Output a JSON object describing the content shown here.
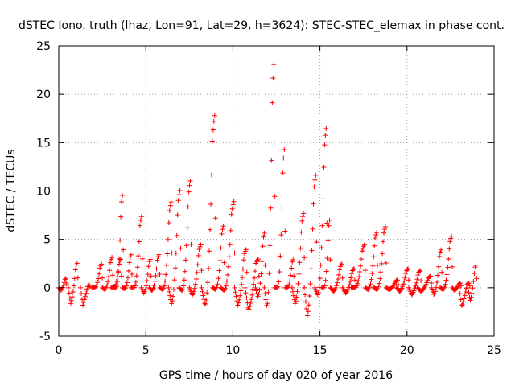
{
  "chart_data": {
    "type": "scatter",
    "title": "dSTEC Iono. truth (lhaz, Lon=91, Lat=29, h=3624): STEC-STEC_elemax in phase cont.",
    "xlabel": "GPS time / hours of day 020 of year 2016",
    "ylabel": "dSTEC  / TECUs",
    "xlim": [
      0,
      25
    ],
    "ylim": [
      -5,
      25
    ],
    "xticks": [
      0,
      5,
      10,
      15,
      20,
      25
    ],
    "yticks": [
      -5,
      0,
      5,
      10,
      15,
      20,
      25
    ],
    "grid": true,
    "marker": "plus",
    "color": "#ff0000",
    "arcs": [
      {
        "start": 0.0,
        "end": 0.45,
        "peak": 1.0,
        "low": -0.3
      },
      {
        "start": 0.55,
        "end": 1.1,
        "peak": 2.6,
        "low": -1.8
      },
      {
        "start": 1.25,
        "end": 1.8,
        "peak": 0.3,
        "low": -2.0
      },
      {
        "start": 1.9,
        "end": 2.5,
        "peak": 2.5,
        "low": 0.0
      },
      {
        "start": 2.5,
        "end": 3.1,
        "peak": 3.2,
        "low": -0.2
      },
      {
        "start": 3.0,
        "end": 3.6,
        "peak": 3.0,
        "low": 0.0
      },
      {
        "start": 3.15,
        "end": 3.7,
        "peak": 9.8,
        "low": 0.0
      },
      {
        "start": 3.65,
        "end": 4.2,
        "peak": 3.5,
        "low": -0.1
      },
      {
        "start": 4.15,
        "end": 4.8,
        "peak": 7.5,
        "low": 0.0
      },
      {
        "start": 4.75,
        "end": 5.3,
        "peak": 3.0,
        "low": -0.6
      },
      {
        "start": 5.2,
        "end": 5.8,
        "peak": 3.5,
        "low": -0.3
      },
      {
        "start": 5.8,
        "end": 6.5,
        "peak": 9.0,
        "low": -0.2
      },
      {
        "start": 6.3,
        "end": 7.0,
        "peak": 10.2,
        "low": -1.8
      },
      {
        "start": 6.9,
        "end": 7.6,
        "peak": 11.2,
        "low": -0.3
      },
      {
        "start": 7.5,
        "end": 8.2,
        "peak": 4.5,
        "low": -0.8
      },
      {
        "start": 8.2,
        "end": 9.0,
        "peak": 18.0,
        "low": -2.0
      },
      {
        "start": 8.85,
        "end": 9.5,
        "peak": 6.5,
        "low": -0.2
      },
      {
        "start": 9.3,
        "end": 10.1,
        "peak": 9.0,
        "low": -0.3
      },
      {
        "start": 10.1,
        "end": 10.8,
        "peak": 4.0,
        "low": -2.0
      },
      {
        "start": 10.7,
        "end": 11.5,
        "peak": 3.0,
        "low": -2.6
      },
      {
        "start": 11.3,
        "end": 11.85,
        "peak": 5.8,
        "low": -1.0
      },
      {
        "start": 11.8,
        "end": 12.4,
        "peak": 23.6,
        "low": -2.2
      },
      {
        "start": 12.4,
        "end": 13.0,
        "peak": 14.6,
        "low": 0.0
      },
      {
        "start": 13.0,
        "end": 13.5,
        "peak": 3.0,
        "low": 0.0
      },
      {
        "start": 13.4,
        "end": 14.1,
        "peak": 7.8,
        "low": -1.8
      },
      {
        "start": 14.1,
        "end": 14.8,
        "peak": 11.8,
        "low": -3.2
      },
      {
        "start": 14.7,
        "end": 15.4,
        "peak": 16.7,
        "low": -0.8
      },
      {
        "start": 15.1,
        "end": 15.6,
        "peak": 7.2,
        "low": 0.0
      },
      {
        "start": 15.6,
        "end": 16.3,
        "peak": 2.5,
        "low": -0.4
      },
      {
        "start": 16.3,
        "end": 17.0,
        "peak": 2.0,
        "low": -0.6
      },
      {
        "start": 16.8,
        "end": 17.6,
        "peak": 4.5,
        "low": 0.0
      },
      {
        "start": 17.6,
        "end": 18.3,
        "peak": 5.8,
        "low": -0.2
      },
      {
        "start": 18.1,
        "end": 18.8,
        "peak": 6.4,
        "low": -0.2
      },
      {
        "start": 18.8,
        "end": 19.5,
        "peak": 0.8,
        "low": -0.2
      },
      {
        "start": 19.4,
        "end": 20.1,
        "peak": 2.0,
        "low": -0.4
      },
      {
        "start": 20.1,
        "end": 20.8,
        "peak": 1.8,
        "low": -0.8
      },
      {
        "start": 20.6,
        "end": 21.4,
        "peak": 1.2,
        "low": -0.4
      },
      {
        "start": 21.4,
        "end": 22.0,
        "peak": 4.0,
        "low": -0.8
      },
      {
        "start": 21.9,
        "end": 22.6,
        "peak": 5.4,
        "low": -0.2
      },
      {
        "start": 22.6,
        "end": 23.1,
        "peak": 0.5,
        "low": -0.3
      },
      {
        "start": 23.0,
        "end": 23.6,
        "peak": 0.5,
        "low": -2.2
      },
      {
        "start": 23.5,
        "end": 24.0,
        "peak": 2.4,
        "low": -1.5
      }
    ]
  }
}
